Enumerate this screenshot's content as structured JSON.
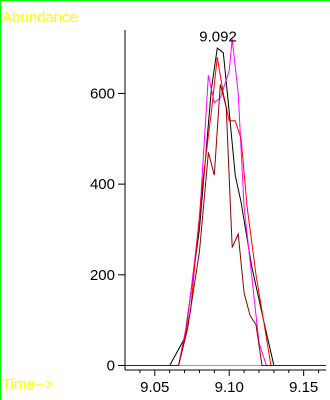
{
  "colors": {
    "background": "#ffffff",
    "frame": "#00ff00",
    "axis": "#000000",
    "corner_text": "#ffff00",
    "baseline": "#00e0e0"
  },
  "chart_data": {
    "type": "line",
    "title": "",
    "ylabel": "Abundance",
    "xlabel": "Time-->",
    "xlim": [
      9.03,
      9.165
    ],
    "ylim": [
      -10,
      740
    ],
    "xticks": [
      9.05,
      9.1,
      9.15
    ],
    "xtick_labels": [
      "9.05",
      "9.10",
      "9.15"
    ],
    "yticks": [
      0,
      200,
      400,
      600
    ],
    "ytick_labels": [
      "0",
      "200",
      "400",
      "600"
    ],
    "grid": false,
    "legend": "none",
    "annotations": [
      {
        "text": "9.092",
        "x": 9.0925,
        "y": 715
      }
    ],
    "series": [
      {
        "color": "#000000",
        "points": [
          [
            9.03,
            0
          ],
          [
            9.06,
            0
          ],
          [
            9.07,
            60
          ],
          [
            9.08,
            300
          ],
          [
            9.088,
            610
          ],
          [
            9.092,
            700
          ],
          [
            9.096,
            690
          ],
          [
            9.1,
            560
          ],
          [
            9.104,
            420
          ],
          [
            9.108,
            360
          ],
          [
            9.115,
            220
          ],
          [
            9.123,
            100
          ],
          [
            9.13,
            0
          ],
          [
            9.165,
            0
          ]
        ]
      },
      {
        "color": "#ff00ff",
        "points": [
          [
            9.03,
            0
          ],
          [
            9.066,
            0
          ],
          [
            9.072,
            100
          ],
          [
            9.08,
            320
          ],
          [
            9.086,
            640
          ],
          [
            9.09,
            580
          ],
          [
            9.094,
            590
          ],
          [
            9.1,
            650
          ],
          [
            9.102,
            720
          ],
          [
            9.106,
            600
          ],
          [
            9.11,
            350
          ],
          [
            9.115,
            200
          ],
          [
            9.12,
            50
          ],
          [
            9.125,
            0
          ],
          [
            9.165,
            0
          ]
        ]
      },
      {
        "color": "#ff0000",
        "points": [
          [
            9.03,
            0
          ],
          [
            9.066,
            0
          ],
          [
            9.074,
            120
          ],
          [
            9.082,
            400
          ],
          [
            9.088,
            560
          ],
          [
            9.092,
            680
          ],
          [
            9.096,
            600
          ],
          [
            9.1,
            540
          ],
          [
            9.104,
            540
          ],
          [
            9.108,
            500
          ],
          [
            9.112,
            350
          ],
          [
            9.118,
            200
          ],
          [
            9.124,
            80
          ],
          [
            9.128,
            0
          ],
          [
            9.165,
            0
          ]
        ]
      },
      {
        "color": "#8b0000",
        "points": [
          [
            9.03,
            0
          ],
          [
            9.066,
            0
          ],
          [
            9.072,
            80
          ],
          [
            9.08,
            250
          ],
          [
            9.086,
            470
          ],
          [
            9.09,
            420
          ],
          [
            9.094,
            620
          ],
          [
            9.098,
            570
          ],
          [
            9.102,
            260
          ],
          [
            9.106,
            290
          ],
          [
            9.11,
            160
          ],
          [
            9.114,
            110
          ],
          [
            9.118,
            90
          ],
          [
            9.122,
            0
          ],
          [
            9.165,
            0
          ]
        ]
      }
    ]
  }
}
